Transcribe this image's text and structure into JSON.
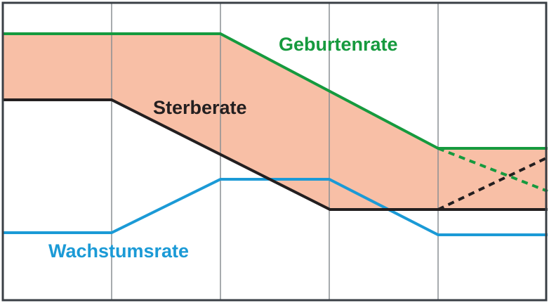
{
  "diagram": {
    "colors": {
      "frame": "#3a3f45",
      "grid": "#8a8f94",
      "band_fill": "#f8bfa6",
      "birth_rate": "#169a3e",
      "death_rate": "#231f20",
      "growth_rate": "#1b9ad6"
    },
    "labels": {
      "birth_rate": "Geburtenrate",
      "death_rate": "Sterberate",
      "growth_rate": "Wachstumsrate"
    }
  }
}
